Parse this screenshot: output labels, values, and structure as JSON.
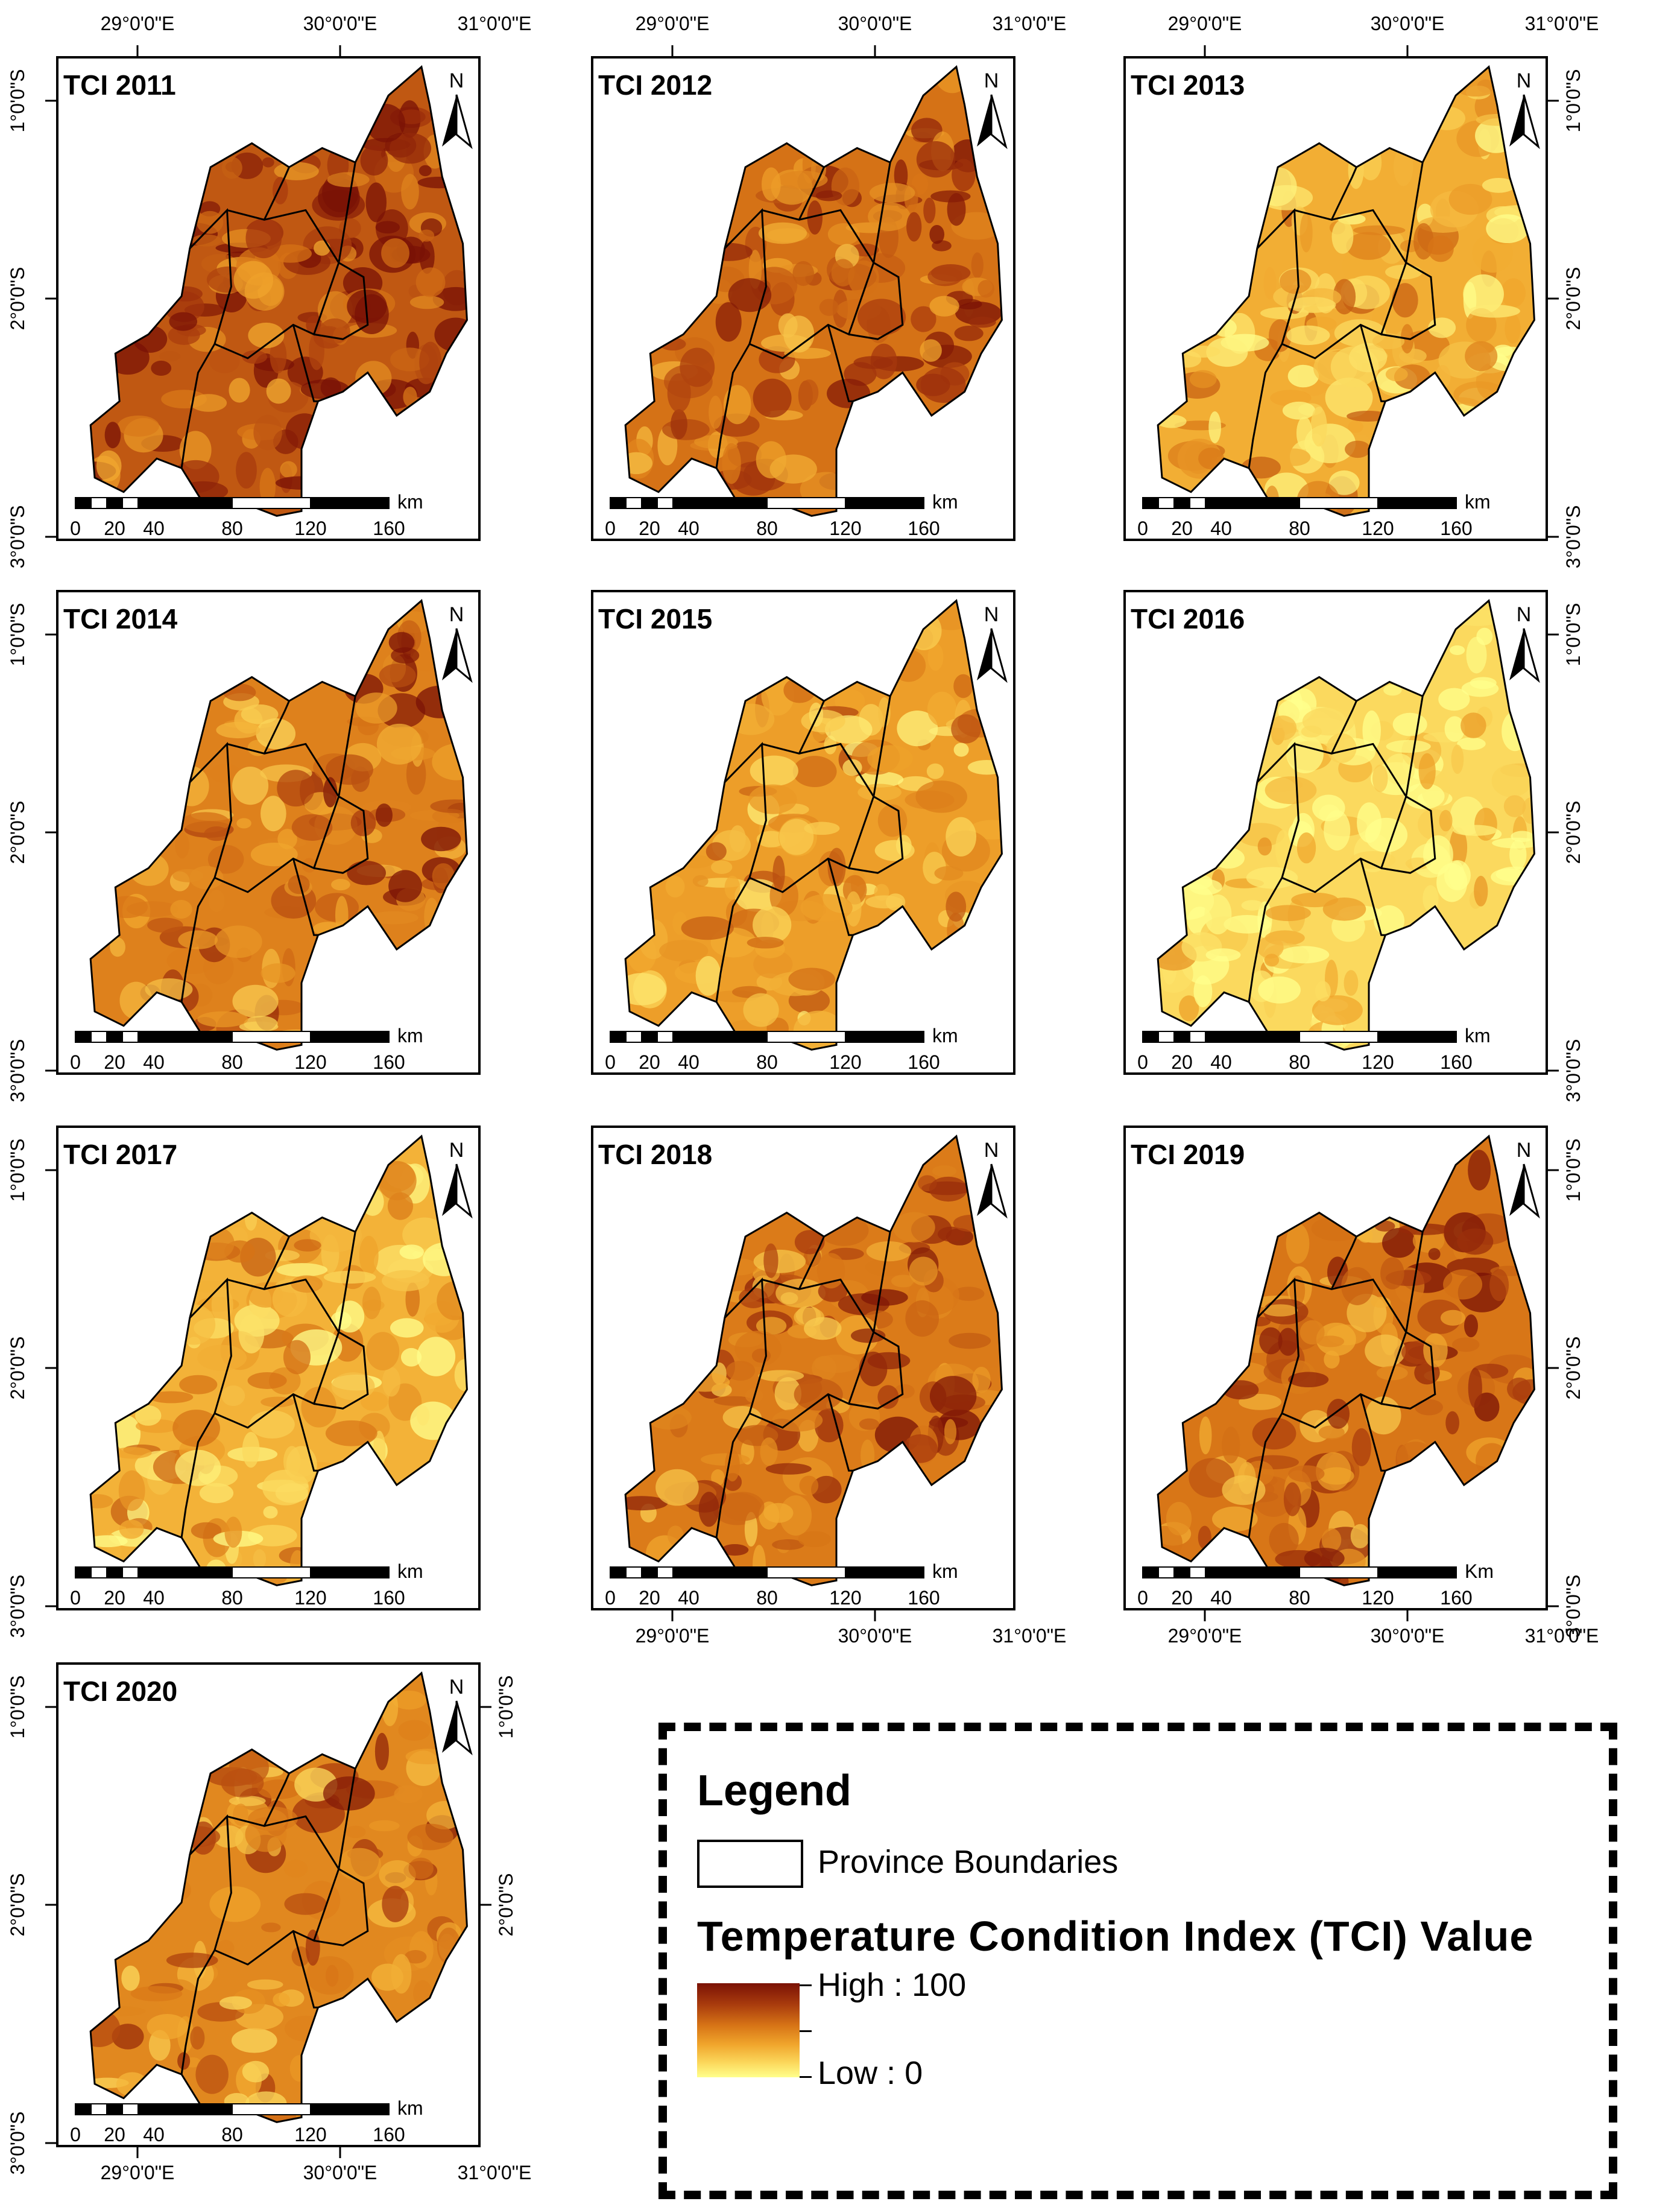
{
  "panels": [
    {
      "title": "TCI 2011",
      "level": 0.72,
      "top_labels": [
        "29°0'0\"E",
        "30°0'0\"E",
        "31°0'0\"E"
      ],
      "left_labels": [
        "1°0'0\"S",
        "2°0'0\"S",
        "3°0'0\"S"
      ],
      "scale_unit": "km",
      "scale_ticks": [
        "0",
        "20",
        "40",
        "80",
        "120",
        "160"
      ],
      "north": "N"
    },
    {
      "title": "TCI 2012",
      "level": 0.62,
      "top_labels": [
        "29°0'0\"E",
        "30°0'0\"E",
        "31°0'0\"E"
      ],
      "scale_unit": "km",
      "scale_ticks": [
        "0",
        "20",
        "40",
        "80",
        "120",
        "160"
      ],
      "north": "N"
    },
    {
      "title": "TCI 2013",
      "level": 0.35,
      "top_labels": [
        "29°0'0\"E",
        "30°0'0\"E",
        "31°0'0\"E"
      ],
      "right_labels": [
        "1°0'0\"S",
        "2°0'0\"S",
        "3°0'0\"S"
      ],
      "scale_unit": "km",
      "scale_ticks": [
        "0",
        "20",
        "40",
        "80",
        "120",
        "160"
      ],
      "north": "N"
    },
    {
      "title": "TCI 2014",
      "level": 0.55,
      "left_labels": [
        "1°0'0\"S",
        "2°0'0\"S",
        "3°0'0\"S"
      ],
      "scale_unit": "km",
      "scale_ticks": [
        "0",
        "20",
        "40",
        "80",
        "120",
        "160"
      ],
      "north": "N"
    },
    {
      "title": "TCI 2015",
      "level": 0.42,
      "scale_unit": "km",
      "scale_ticks": [
        "0",
        "20",
        "40",
        "80",
        "120",
        "160"
      ],
      "north": "N"
    },
    {
      "title": "TCI 2016",
      "level": 0.15,
      "right_labels": [
        "1°0'0\"S",
        "2°0'0\"S",
        "3°0'0\"S"
      ],
      "scale_unit": "km",
      "scale_ticks": [
        "0",
        "20",
        "40",
        "80",
        "120",
        "160"
      ],
      "north": "N"
    },
    {
      "title": "TCI 2017",
      "level": 0.33,
      "left_labels": [
        "1°0'0\"S",
        "2°0'0\"S",
        "3°0'0\"S"
      ],
      "scale_unit": "km",
      "scale_ticks": [
        "0",
        "20",
        "40",
        "80",
        "120",
        "160"
      ],
      "north": "N"
    },
    {
      "title": "TCI 2018",
      "level": 0.58,
      "bottom_labels": [
        "29°0'0\"E",
        "30°0'0\"E",
        "31°0'0\"E"
      ],
      "scale_unit": "km",
      "scale_ticks": [
        "0",
        "20",
        "40",
        "80",
        "120",
        "160"
      ],
      "north": "N"
    },
    {
      "title": "TCI 2019",
      "level": 0.6,
      "right_labels": [
        "1°0'0\"S",
        "2°0'0\"S",
        "3°0'0\"S"
      ],
      "bottom_labels": [
        "29°0'0\"E",
        "30°0'0\"E",
        "31°0'0\"E"
      ],
      "scale_unit": "Km",
      "scale_ticks": [
        "0",
        "20",
        "40",
        "80",
        "120",
        "160"
      ],
      "north": "N"
    },
    {
      "title": "TCI 2020",
      "level": 0.52,
      "left_labels": [
        "1°0'0\"S",
        "2°0'0\"S",
        "3°0'0\"S"
      ],
      "right_labels": [
        "1°0'0\"S",
        "2°0'0\"S"
      ],
      "bottom_labels": [
        "29°0'0\"E",
        "30°0'0\"E",
        "31°0'0\"E"
      ],
      "scale_unit": "km",
      "scale_ticks": [
        "0",
        "20",
        "40",
        "80",
        "120",
        "160"
      ],
      "north": "N"
    }
  ],
  "legend": {
    "title": "Legend",
    "boundary_label": "Province Boundaries",
    "index_title": "Temperature Condition Index (TCI) Value",
    "high_label": "High : 100",
    "low_label": "Low : 0"
  },
  "colors": {
    "ramp": [
      "#ffff8c",
      "#fbd65a",
      "#f0a52c",
      "#d77416",
      "#a83a0d",
      "#7a1205"
    ],
    "boundary": "#000000"
  }
}
